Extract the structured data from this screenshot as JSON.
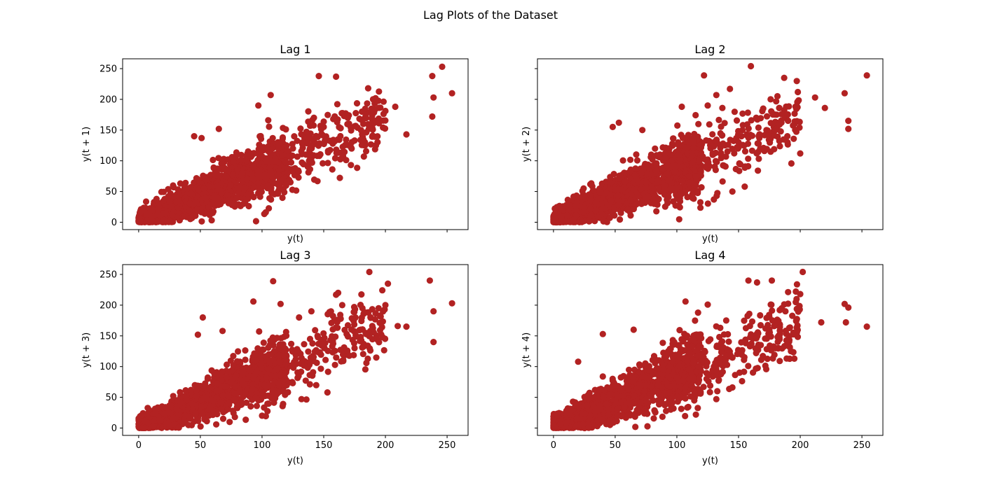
{
  "figure": {
    "title": "Lag Plots of the Dataset"
  },
  "colors": {
    "marker": "#b22222",
    "axis": "#000000",
    "background": "#ffffff"
  },
  "chart_data": [
    {
      "type": "scatter",
      "lag": 1,
      "title": "Lag 1",
      "xlabel": "y(t)",
      "ylabel": "y(t + 1)",
      "xlim": [
        -13,
        267
      ],
      "ylim": [
        -12,
        266
      ],
      "xticks": [
        0,
        50,
        100,
        150,
        200,
        250
      ],
      "yticks": [
        0,
        50,
        100,
        150,
        200,
        250
      ],
      "show_xtick_labels": false,
      "show_ytick_labels": true,
      "grid": false,
      "bulk": {
        "x_range": [
          0,
          120
        ],
        "y_over_x": 0.85,
        "spread": 22,
        "count": 1400
      },
      "points": [
        [
          246,
          253
        ],
        [
          238,
          238
        ],
        [
          238,
          172
        ],
        [
          239,
          203
        ],
        [
          254,
          210
        ],
        [
          217,
          143
        ],
        [
          192,
          165
        ],
        [
          208,
          188
        ],
        [
          190,
          200
        ],
        [
          161,
          192
        ],
        [
          160,
          237
        ],
        [
          146,
          238
        ],
        [
          107,
          207
        ],
        [
          97,
          190
        ],
        [
          186,
          218
        ],
        [
          157,
          86
        ],
        [
          150,
          155
        ],
        [
          123,
          65
        ],
        [
          85,
          30
        ],
        [
          60,
          15
        ],
        [
          45,
          140
        ],
        [
          51,
          137
        ],
        [
          65,
          152
        ],
        [
          181,
          180
        ],
        [
          175,
          133
        ],
        [
          139,
          157
        ],
        [
          125,
          120
        ],
        [
          105,
          166
        ]
      ]
    },
    {
      "type": "scatter",
      "lag": 2,
      "title": "Lag 2",
      "xlabel": "y(t)",
      "ylabel": "y(t + 2)",
      "xlim": [
        -13,
        267
      ],
      "ylim": [
        -12,
        266
      ],
      "xticks": [
        0,
        50,
        100,
        150,
        200,
        250
      ],
      "yticks": [
        0,
        50,
        100,
        150,
        200,
        250
      ],
      "show_xtick_labels": false,
      "show_ytick_labels": false,
      "grid": false,
      "bulk": {
        "x_range": [
          0,
          120
        ],
        "y_over_x": 0.85,
        "spread": 24,
        "count": 1400
      },
      "points": [
        [
          160,
          254
        ],
        [
          122,
          239
        ],
        [
          254,
          239
        ],
        [
          236,
          210
        ],
        [
          239,
          165
        ],
        [
          239,
          152
        ],
        [
          220,
          186
        ],
        [
          212,
          203
        ],
        [
          187,
          235
        ],
        [
          200,
          112
        ],
        [
          143,
          217
        ],
        [
          132,
          207
        ],
        [
          104,
          188
        ],
        [
          125,
          190
        ],
        [
          130,
          37
        ],
        [
          145,
          50
        ],
        [
          155,
          58
        ],
        [
          110,
          75
        ],
        [
          90,
          45
        ],
        [
          60,
          20
        ],
        [
          48,
          155
        ],
        [
          53,
          162
        ],
        [
          72,
          150
        ],
        [
          176,
          200
        ],
        [
          170,
          185
        ],
        [
          180,
          150
        ],
        [
          125,
          95
        ],
        [
          150,
          130
        ]
      ]
    },
    {
      "type": "scatter",
      "lag": 3,
      "title": "Lag 3",
      "xlabel": "y(t)",
      "ylabel": "y(t + 3)",
      "xlim": [
        -13,
        267
      ],
      "ylim": [
        -12,
        266
      ],
      "xticks": [
        0,
        50,
        100,
        150,
        200,
        250
      ],
      "yticks": [
        0,
        50,
        100,
        150,
        200,
        250
      ],
      "show_xtick_labels": true,
      "show_ytick_labels": true,
      "grid": false,
      "bulk": {
        "x_range": [
          0,
          120
        ],
        "y_over_x": 0.85,
        "spread": 22,
        "count": 1400
      },
      "points": [
        [
          187,
          254
        ],
        [
          236,
          240
        ],
        [
          202,
          235
        ],
        [
          109,
          239
        ],
        [
          239,
          190
        ],
        [
          239,
          140
        ],
        [
          254,
          203
        ],
        [
          217,
          165
        ],
        [
          210,
          166
        ],
        [
          200,
          200
        ],
        [
          165,
          200
        ],
        [
          160,
          217
        ],
        [
          93,
          206
        ],
        [
          115,
          202
        ],
        [
          132,
          47
        ],
        [
          153,
          58
        ],
        [
          110,
          75
        ],
        [
          100,
          20
        ],
        [
          78,
          18
        ],
        [
          52,
          180
        ],
        [
          48,
          152
        ],
        [
          68,
          158
        ],
        [
          180,
          160
        ],
        [
          175,
          130
        ],
        [
          145,
          150
        ],
        [
          120,
          110
        ],
        [
          130,
          180
        ],
        [
          140,
          190
        ]
      ]
    },
    {
      "type": "scatter",
      "lag": 4,
      "title": "Lag 4",
      "xlabel": "y(t)",
      "ylabel": "y(t + 4)",
      "xlim": [
        -13,
        267
      ],
      "ylim": [
        -12,
        266
      ],
      "xticks": [
        0,
        50,
        100,
        150,
        200,
        250
      ],
      "yticks": [
        0,
        50,
        100,
        150,
        200,
        250
      ],
      "show_xtick_labels": true,
      "show_ytick_labels": false,
      "grid": false,
      "bulk": {
        "x_range": [
          0,
          120
        ],
        "y_over_x": 0.85,
        "spread": 24,
        "count": 1400
      },
      "points": [
        [
          202,
          254
        ],
        [
          158,
          240
        ],
        [
          177,
          240
        ],
        [
          165,
          237
        ],
        [
          236,
          202
        ],
        [
          239,
          196
        ],
        [
          237,
          172
        ],
        [
          254,
          165
        ],
        [
          200,
          218
        ],
        [
          197,
          210
        ],
        [
          217,
          172
        ],
        [
          188,
          190
        ],
        [
          107,
          206
        ],
        [
          125,
          201
        ],
        [
          132,
          47
        ],
        [
          145,
          66
        ],
        [
          110,
          80
        ],
        [
          95,
          30
        ],
        [
          60,
          20
        ],
        [
          20,
          108
        ],
        [
          40,
          153
        ],
        [
          65,
          160
        ],
        [
          175,
          160
        ],
        [
          168,
          135
        ],
        [
          150,
          125
        ],
        [
          130,
          100
        ],
        [
          140,
          175
        ],
        [
          180,
          130
        ]
      ]
    }
  ]
}
